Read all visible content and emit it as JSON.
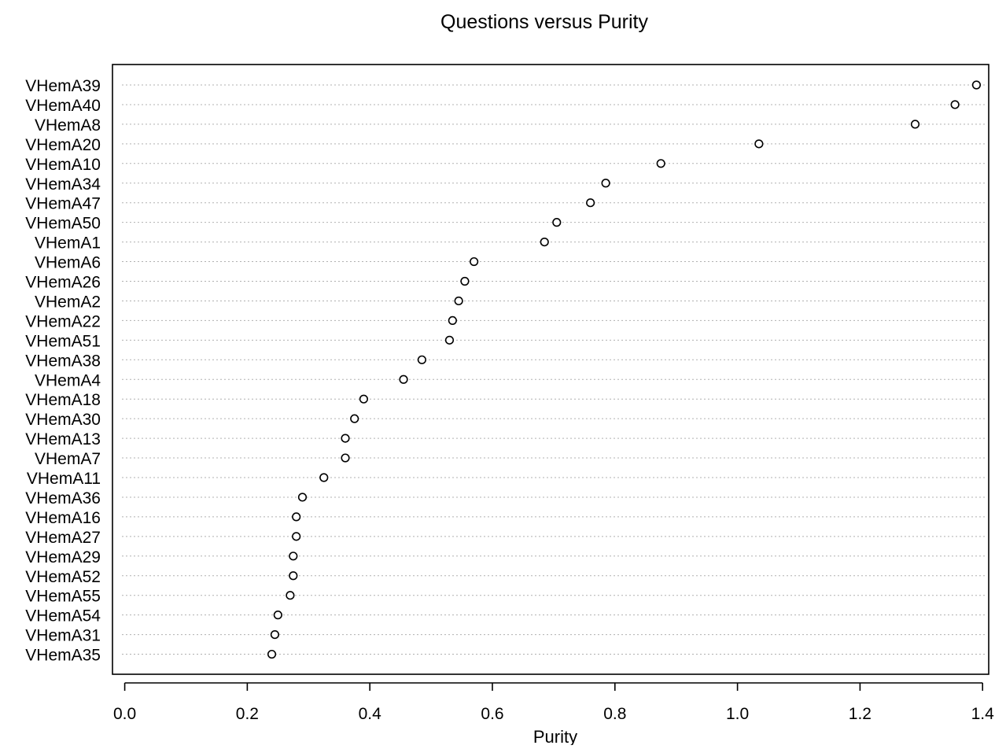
{
  "chart_data": {
    "type": "scatter",
    "subtype": "dot plot",
    "title": "Questions versus Purity",
    "xlabel": "Purity",
    "ylabel": "",
    "xlim": [
      -0.02,
      1.41
    ],
    "xticks": [
      0.0,
      0.2,
      0.4,
      0.6,
      0.8,
      1.0,
      1.2,
      1.4
    ],
    "xtick_labels": [
      "0.0",
      "0.2",
      "0.4",
      "0.6",
      "0.8",
      "1.0",
      "1.2",
      "1.4"
    ],
    "categories": [
      "VHemA39",
      "VHemA40",
      "VHemA8",
      "VHemA20",
      "VHemA10",
      "VHemA34",
      "VHemA47",
      "VHemA50",
      "VHemA1",
      "VHemA6",
      "VHemA26",
      "VHemA2",
      "VHemA22",
      "VHemA51",
      "VHemA38",
      "VHemA4",
      "VHemA18",
      "VHemA30",
      "VHemA13",
      "VHemA7",
      "VHemA11",
      "VHemA36",
      "VHemA16",
      "VHemA27",
      "VHemA29",
      "VHemA52",
      "VHemA55",
      "VHemA54",
      "VHemA31",
      "VHemA35"
    ],
    "values": [
      1.39,
      1.355,
      1.29,
      1.035,
      0.875,
      0.785,
      0.76,
      0.705,
      0.685,
      0.57,
      0.555,
      0.545,
      0.535,
      0.53,
      0.485,
      0.455,
      0.39,
      0.375,
      0.36,
      0.36,
      0.325,
      0.29,
      0.28,
      0.28,
      0.275,
      0.275,
      0.27,
      0.25,
      0.245,
      0.24
    ],
    "grid": "dotted horizontal reference lines per category",
    "marker": "open circle",
    "colors": {
      "marker": "#000000",
      "gridline": "#b0b0b0",
      "frame": "#000000"
    }
  }
}
